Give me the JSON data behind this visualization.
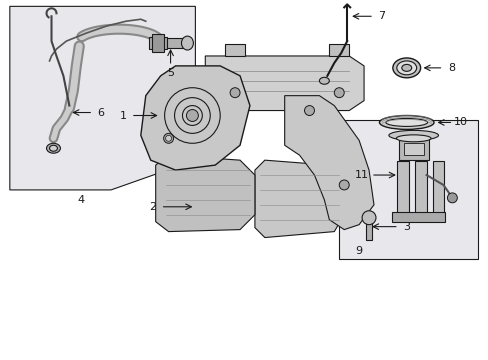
{
  "background_color": "#ffffff",
  "line_color": "#1a1a1a",
  "light_gray": "#d8d8d8",
  "mid_gray": "#aaaaaa",
  "dark_gray": "#666666",
  "box1_fill": "#e8e8ec",
  "box2_fill": "#e8e8ec",
  "label_fontsize": 8,
  "arrow_lw": 0.8
}
